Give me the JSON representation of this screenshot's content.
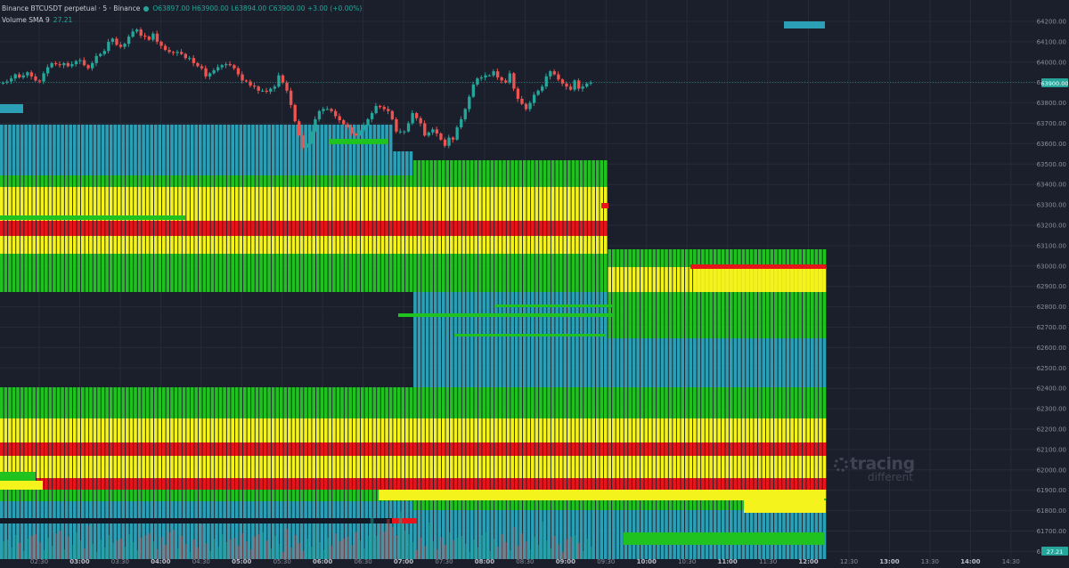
{
  "legend": {
    "title": "Binance BTCUSDT perpetual · 5 · Binance",
    "ohlc": "O63897.00 H63900.00 L63894.00 C63900.00 +3.00 (+0.00%)",
    "volume_label": "Volume SMA 9",
    "volume_value": "27.21"
  },
  "price_tag": "63900.00",
  "volume_tag": "27.21",
  "watermark": {
    "line1": "tracing",
    "line2": "different"
  },
  "colors": {
    "background": "#1b1f2b",
    "up": "#26a69a",
    "down": "#ef5350",
    "heat_teal": "#2a9fb5",
    "heat_green": "#1fc21f",
    "heat_yellow": "#f4f41c",
    "heat_red": "#e8141c",
    "grid": "#262b38"
  },
  "chart_data": {
    "type": "candlestick",
    "interval_minutes": 5,
    "yrange": [
      63550,
      64250
    ],
    "yticks": [
      64200,
      64100,
      64000,
      63900,
      63800,
      63700,
      63600,
      63500,
      63400,
      63300,
      63200,
      63100,
      63000,
      62900,
      62800,
      62700,
      62600,
      62500,
      62400,
      62300,
      62200,
      62100,
      62000,
      61900,
      61800,
      61700,
      61600
    ],
    "ytick_labels": [
      "64200.00",
      "64100.00",
      "64000.00",
      "63900.00",
      "63800.00",
      "63700.00",
      "63600.00",
      "63500.00",
      "63400.00",
      "63300.00",
      "63200.00",
      "63100.00",
      "63000.00",
      "62900.00",
      "62800.00",
      "62700.00",
      "62600.00",
      "62500.00",
      "62400.00",
      "62300.00",
      "62200.00",
      "62100.00",
      "62000.00",
      "61900.00",
      "61800.00",
      "61700.00",
      "61600.00"
    ],
    "xtick_labels": [
      {
        "label": "02:30",
        "bold": false
      },
      {
        "label": "03:00",
        "bold": true
      },
      {
        "label": "03:30",
        "bold": false
      },
      {
        "label": "04:00",
        "bold": true
      },
      {
        "label": "04:30",
        "bold": false
      },
      {
        "label": "05:00",
        "bold": true
      },
      {
        "label": "05:30",
        "bold": false
      },
      {
        "label": "06:00",
        "bold": true
      },
      {
        "label": "06:30",
        "bold": false
      },
      {
        "label": "07:00",
        "bold": true
      },
      {
        "label": "07:30",
        "bold": false
      },
      {
        "label": "08:00",
        "bold": true
      },
      {
        "label": "08:30",
        "bold": false
      },
      {
        "label": "09:00",
        "bold": true
      },
      {
        "label": "09:30",
        "bold": false
      },
      {
        "label": "10:00",
        "bold": true
      },
      {
        "label": "10:30",
        "bold": false
      },
      {
        "label": "11:00",
        "bold": true
      },
      {
        "label": "11:30",
        "bold": false
      },
      {
        "label": "12:00",
        "bold": true
      },
      {
        "label": "12:30",
        "bold": false
      },
      {
        "label": "13:00",
        "bold": true
      },
      {
        "label": "13:30",
        "bold": false
      },
      {
        "label": "14:00",
        "bold": true
      },
      {
        "label": "14:30",
        "bold": false
      }
    ],
    "closes": [
      63900,
      63905,
      63920,
      63940,
      63925,
      63935,
      63950,
      63930,
      63910,
      63905,
      63945,
      63975,
      63995,
      63990,
      63985,
      63995,
      63980,
      63990,
      64005,
      64010,
      63985,
      63970,
      63995,
      64030,
      64040,
      64055,
      64100,
      64115,
      64085,
      64075,
      64090,
      64125,
      64150,
      64160,
      64130,
      64125,
      64110,
      64140,
      64100,
      64080,
      64060,
      64050,
      64045,
      64050,
      64040,
      64020,
      64020,
      63995,
      63980,
      63970,
      63930,
      63945,
      63960,
      63975,
      63985,
      63990,
      63985,
      63970,
      63940,
      63910,
      63905,
      63885,
      63880,
      63860,
      63860,
      63855,
      63870,
      63880,
      63935,
      63900,
      63860,
      63790,
      63710,
      63640,
      63580,
      63600,
      63660,
      63720,
      63760,
      63770,
      63770,
      63760,
      63735,
      63715,
      63695,
      63680,
      63650,
      63640,
      63665,
      63690,
      63720,
      63750,
      63785,
      63780,
      63770,
      63760,
      63720,
      63660,
      63660,
      63660,
      63700,
      63750,
      63725,
      63700,
      63640,
      63655,
      63670,
      63650,
      63620,
      63590,
      63630,
      63620,
      63680,
      63720,
      63770,
      63830,
      63890,
      63920,
      63925,
      63935,
      63935,
      63955,
      63925,
      63910,
      63900,
      63945,
      63870,
      63820,
      63795,
      63770,
      63800,
      63840,
      63860,
      63880,
      63930,
      63955,
      63940,
      63915,
      63895,
      63880,
      63865,
      63910,
      63870,
      63880,
      63895,
      63900
    ],
    "heatmap_levels": [
      "teal",
      "green",
      "yellow",
      "red"
    ],
    "volume_sma": 27.21
  }
}
